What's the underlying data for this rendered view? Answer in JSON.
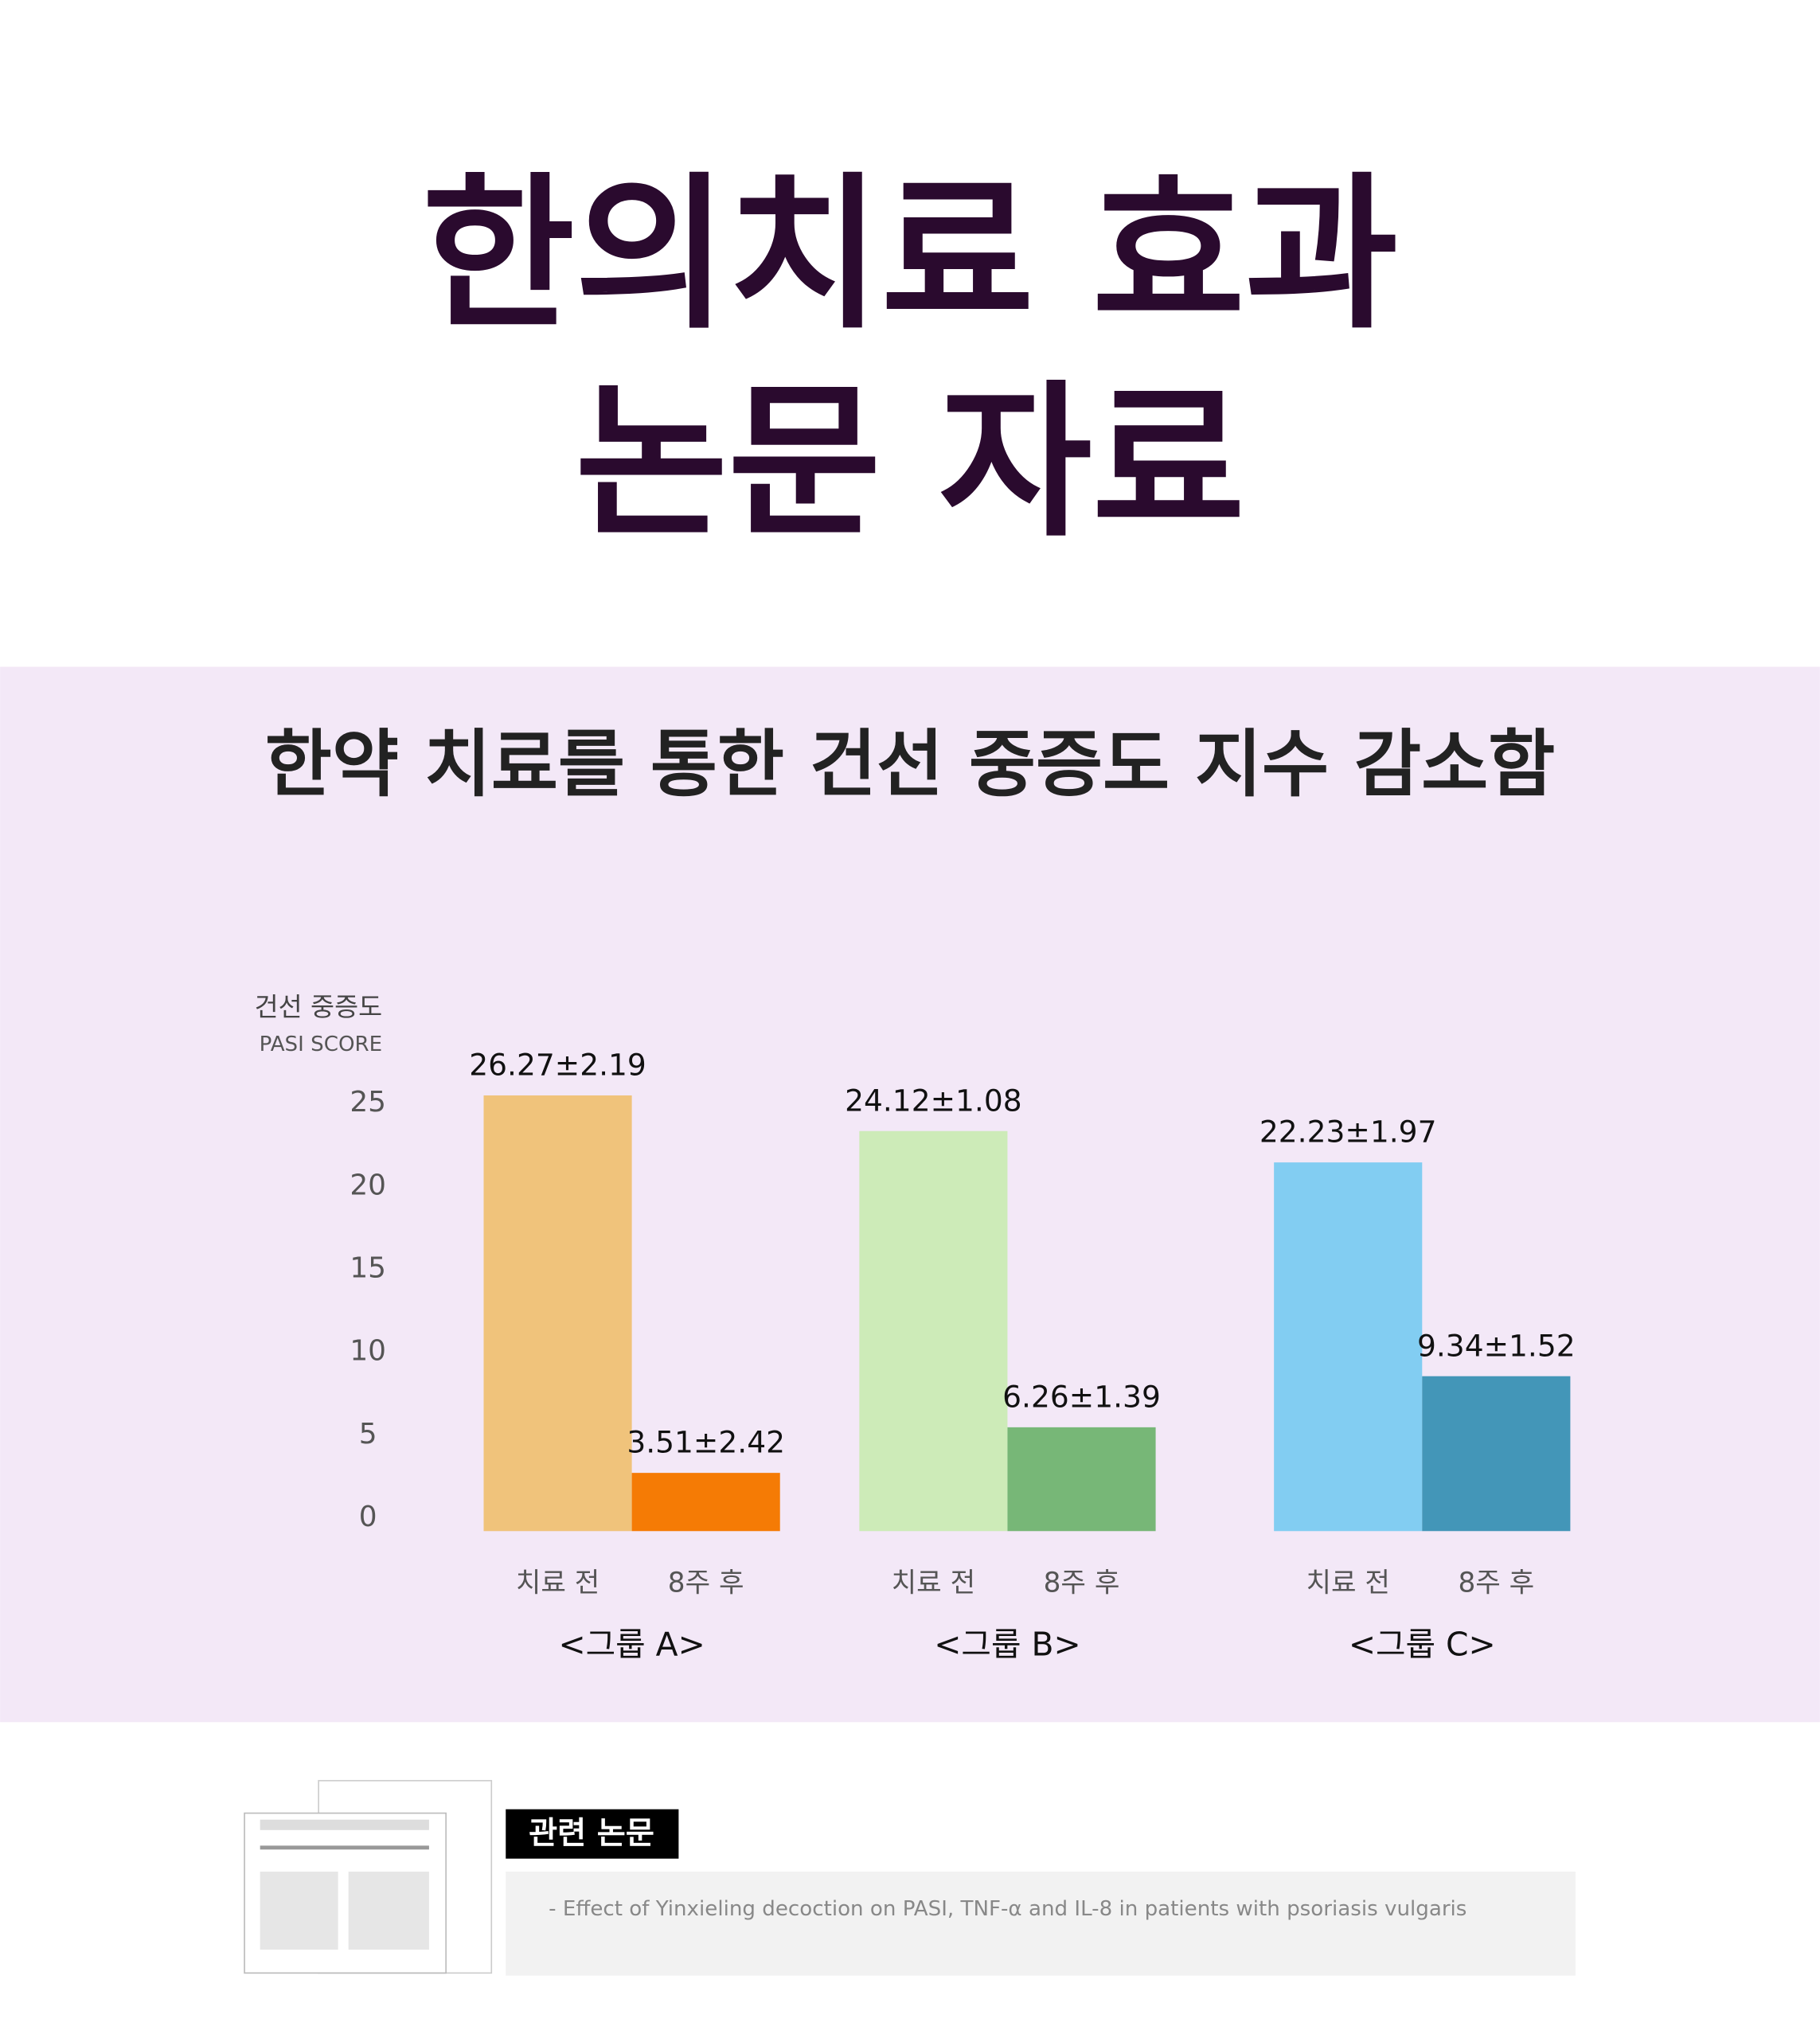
{
  "header": {
    "title_lines": [
      "한의치료 효과",
      "논문 자료"
    ]
  },
  "chart_data": {
    "type": "bar",
    "title": "한약 치료를 통한 건선 중증도 지수 감소함",
    "y_label": "건선 중증도",
    "y_label_sub": "PASI SCORE",
    "categories": [
      "<그룹 A>",
      "<그룹 B>",
      "<그룹 C>"
    ],
    "series": [
      {
        "name": "치료 전",
        "colors": [
          "#f0c37b",
          "#cdebb8",
          "#82cdf2"
        ],
        "values": [
          26.27,
          24.12,
          22.23
        ],
        "value_labels": [
          "26.27±2.19",
          "24.12±1.08",
          "22.23±1.97"
        ]
      },
      {
        "name": "8주 후",
        "colors": [
          "#f57b05",
          "#77b777",
          "#4396b8"
        ],
        "values": [
          3.51,
          6.26,
          9.34
        ],
        "value_labels": [
          "3.51±2.42",
          "6.26±1.39",
          "9.34±1.52"
        ]
      }
    ],
    "ylim": [
      0,
      25
    ],
    "yticks": [
      0,
      5,
      10,
      15,
      20,
      25
    ],
    "grid": false
  },
  "reference": {
    "label": "관련 논문",
    "text": "- Effect of Yinxieling decoction on PASI, TNF-α and IL-8 in patients with psoriasis vulgaris"
  }
}
